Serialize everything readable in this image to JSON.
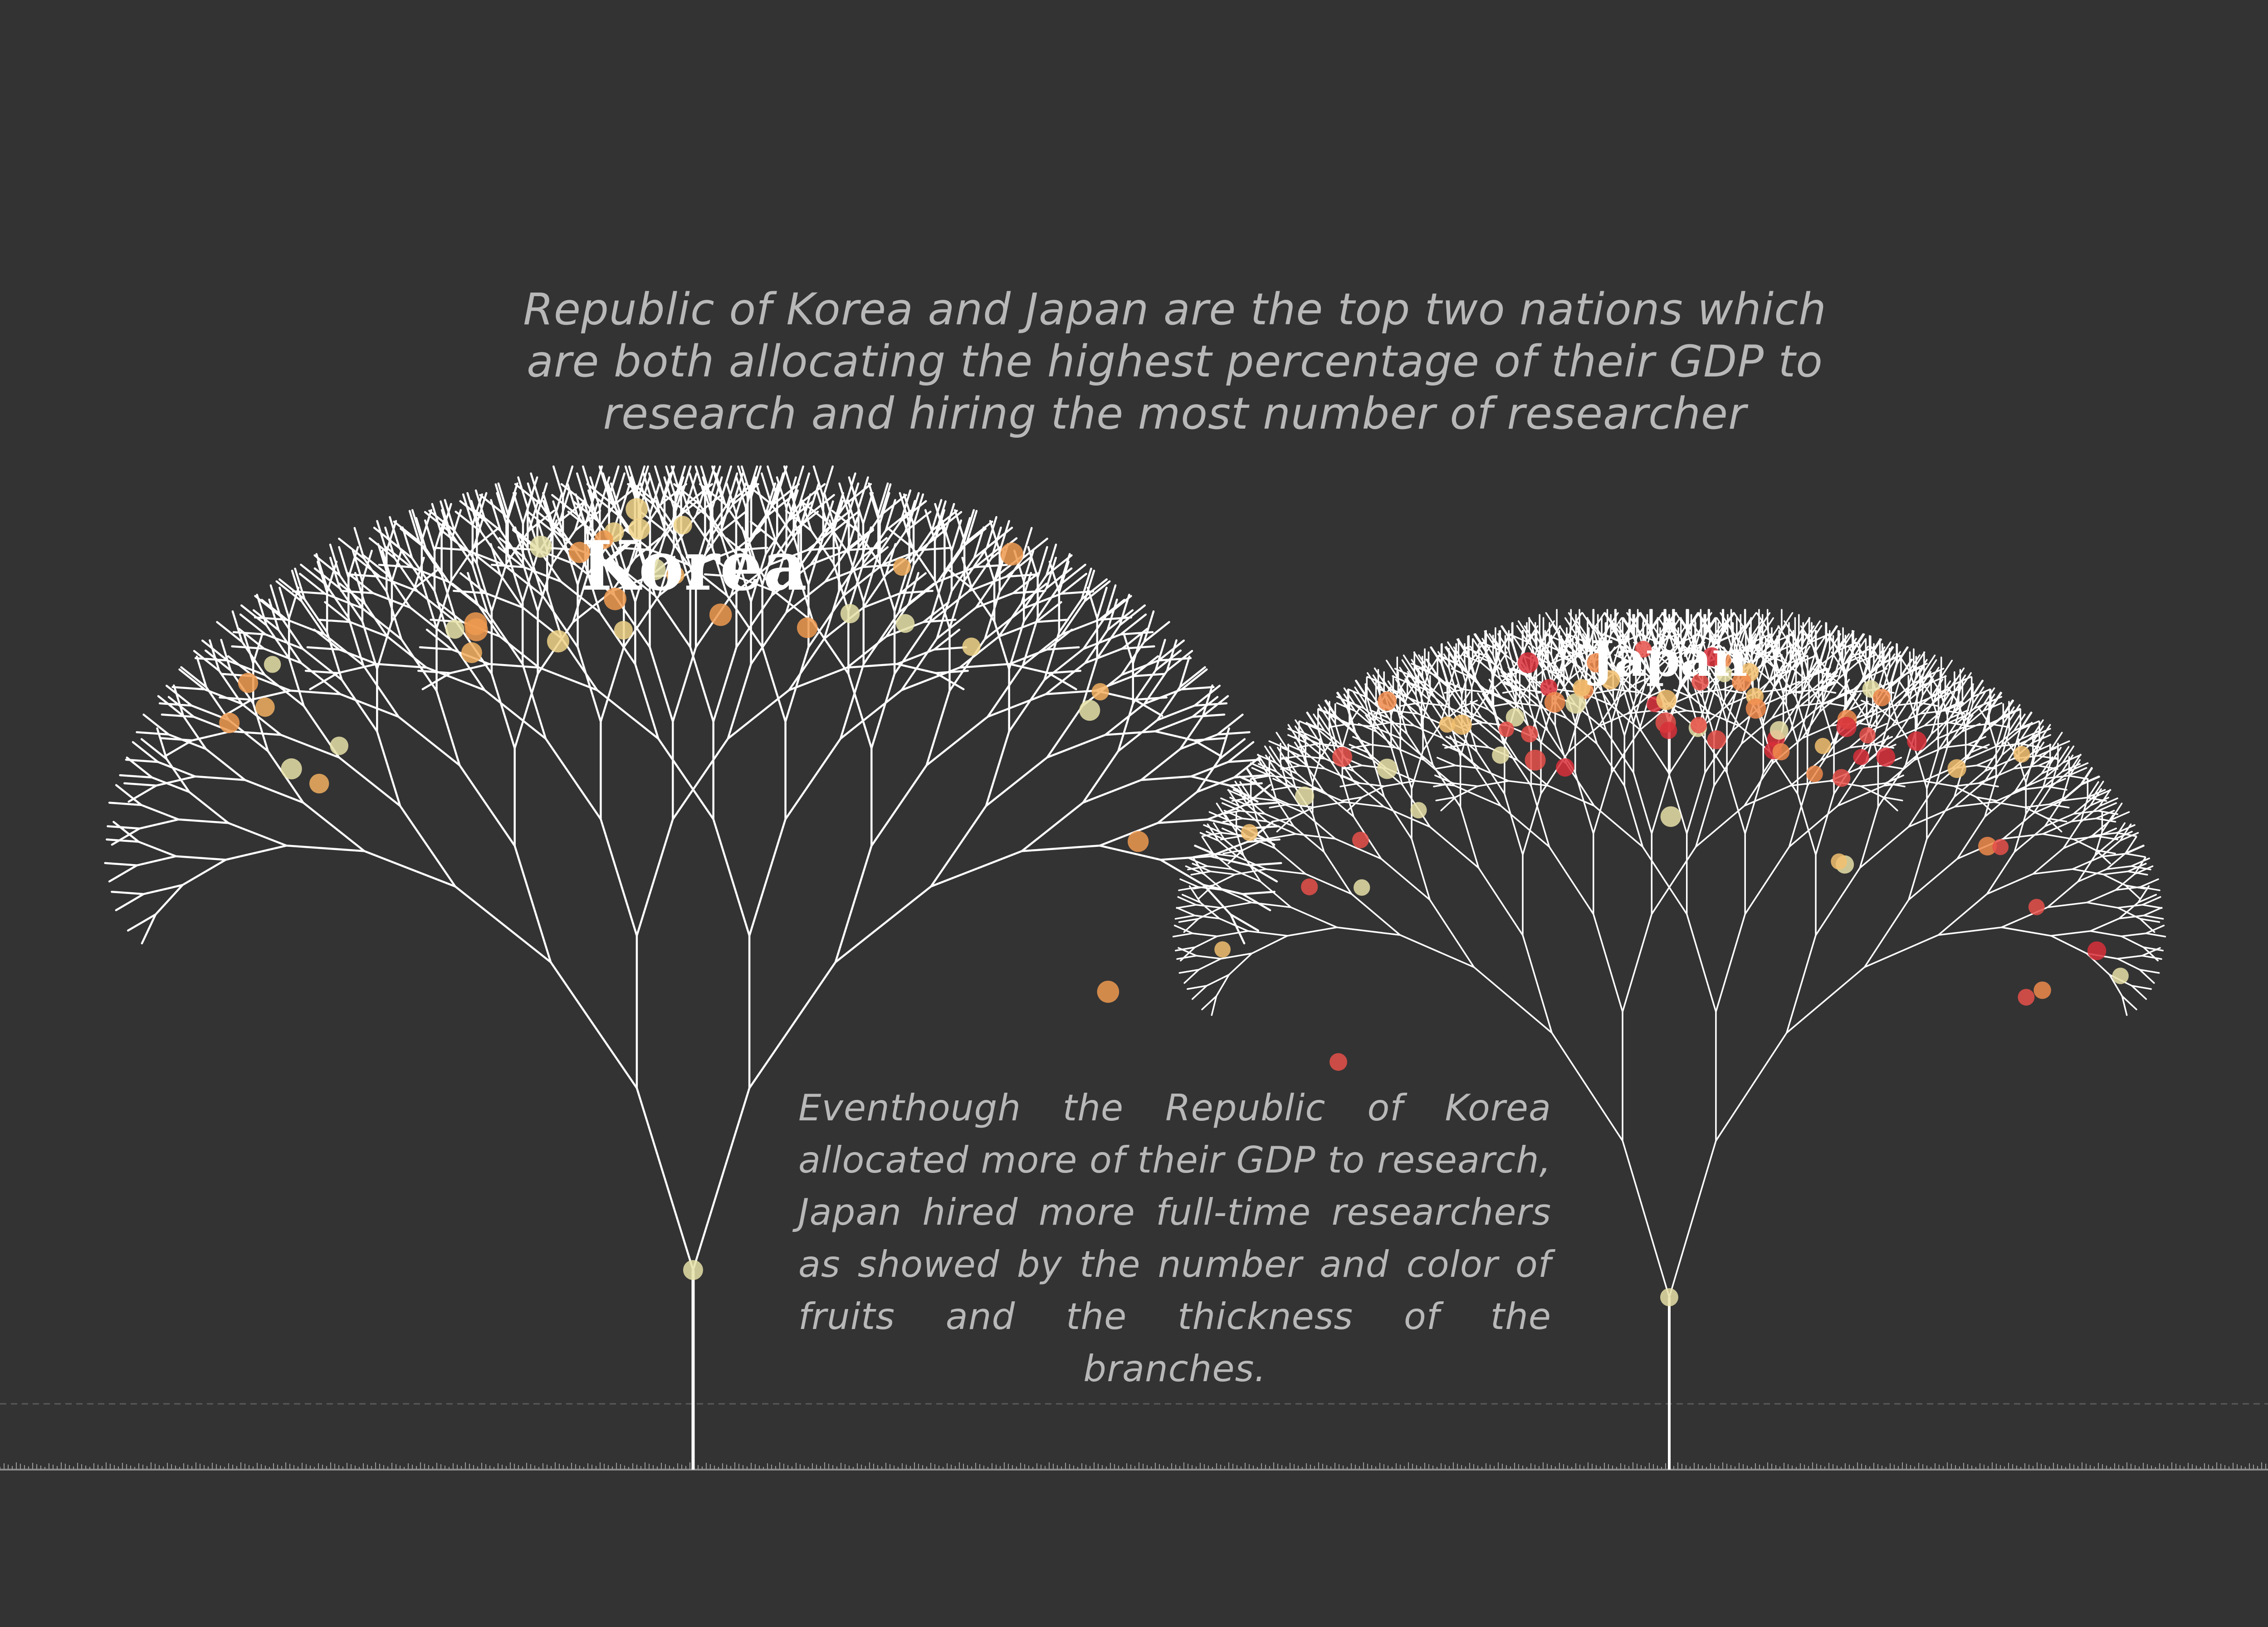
{
  "intro": "Republic of Korea and Japan are the top two nations which are both allocating the highest percentage of their GDP to research and hiring the most number of researcher",
  "comparison": "Eventhough the Republic of Korea allocated more of their GDP to research, Japan hired more full-time researchers as showed by the number and color of fruits and the thickness of the branches.",
  "trees": [
    {
      "name": "Korea",
      "depth": 9,
      "fruit_count": 34,
      "fruit_colors": [
        "#f0d48a",
        "#f2b060",
        "#ee9a50",
        "#e6e0a8"
      ]
    },
    {
      "name": "Japan",
      "depth": 10,
      "fruit_count": 70,
      "fruit_colors": [
        "#f2c070",
        "#ee8a4c",
        "#e6504a",
        "#d8303a",
        "#e8e0a8"
      ]
    }
  ],
  "colors": {
    "background": "#333333",
    "branches": "#ffffff",
    "ground": "#9a9a9a",
    "text": "#b8b8b8"
  }
}
